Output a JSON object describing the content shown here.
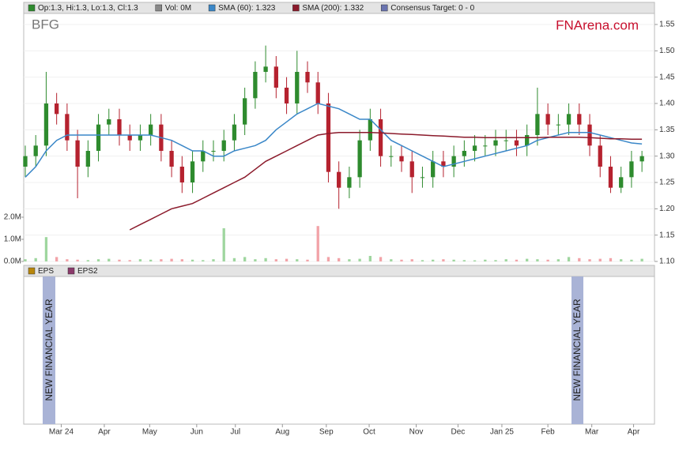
{
  "chart_data": {
    "type": "candlestick",
    "ticker": "BFG",
    "brand": "FNArena.com",
    "legend": [
      "Op:1.3, Hi:1.3, Lo:1.3, Cl:1.3",
      "Vol: 0M",
      "SMA (60): 1.323",
      "SMA (200): 1.332",
      "Consensus Target: 0 - 0"
    ],
    "legend_colors": [
      "#2e8b2e",
      "#888888",
      "#3a87c8",
      "#8b1a2b",
      "#6a74b0"
    ],
    "up_color": "#2e8b2e",
    "down_color": "#b5222f",
    "open": [
      1.28,
      1.3,
      1.32,
      1.4,
      1.38,
      1.33,
      1.28,
      1.31,
      1.36,
      1.37,
      1.34,
      1.33,
      1.34,
      1.36,
      1.31,
      1.28,
      1.25,
      1.29,
      1.31,
      1.31,
      1.33,
      1.36,
      1.41,
      1.46,
      1.47,
      1.43,
      1.4,
      1.46,
      1.44,
      1.4,
      1.27,
      1.24,
      1.26,
      1.33,
      1.37,
      1.3,
      1.3,
      1.29,
      1.26,
      1.26,
      1.29,
      1.28,
      1.3,
      1.31,
      1.32,
      1.32,
      1.33,
      1.33,
      1.32,
      1.34,
      1.38,
      1.36,
      1.36,
      1.38,
      1.36,
      1.32,
      1.28,
      1.24,
      1.26,
      1.29
    ],
    "high": [
      1.32,
      1.34,
      1.46,
      1.42,
      1.4,
      1.35,
      1.33,
      1.38,
      1.39,
      1.39,
      1.36,
      1.36,
      1.38,
      1.38,
      1.33,
      1.3,
      1.31,
      1.33,
      1.33,
      1.35,
      1.38,
      1.43,
      1.48,
      1.51,
      1.49,
      1.45,
      1.5,
      1.48,
      1.46,
      1.42,
      1.29,
      1.28,
      1.35,
      1.39,
      1.39,
      1.32,
      1.32,
      1.31,
      1.28,
      1.31,
      1.31,
      1.32,
      1.33,
      1.34,
      1.34,
      1.35,
      1.35,
      1.35,
      1.36,
      1.43,
      1.4,
      1.38,
      1.4,
      1.4,
      1.38,
      1.34,
      1.3,
      1.28,
      1.31,
      1.31
    ],
    "low": [
      1.26,
      1.28,
      1.3,
      1.36,
      1.31,
      1.22,
      1.26,
      1.29,
      1.34,
      1.32,
      1.31,
      1.31,
      1.32,
      1.29,
      1.26,
      1.23,
      1.23,
      1.27,
      1.29,
      1.29,
      1.31,
      1.34,
      1.39,
      1.44,
      1.41,
      1.38,
      1.38,
      1.42,
      1.38,
      1.25,
      1.2,
      1.22,
      1.24,
      1.31,
      1.28,
      1.28,
      1.27,
      1.23,
      1.24,
      1.24,
      1.26,
      1.26,
      1.28,
      1.29,
      1.3,
      1.3,
      1.31,
      1.3,
      1.3,
      1.32,
      1.34,
      1.34,
      1.34,
      1.34,
      1.3,
      1.26,
      1.23,
      1.23,
      1.24,
      1.27
    ],
    "close": [
      1.3,
      1.32,
      1.4,
      1.38,
      1.33,
      1.28,
      1.31,
      1.36,
      1.37,
      1.34,
      1.33,
      1.34,
      1.36,
      1.31,
      1.28,
      1.25,
      1.29,
      1.31,
      1.31,
      1.33,
      1.36,
      1.41,
      1.46,
      1.47,
      1.43,
      1.4,
      1.46,
      1.44,
      1.4,
      1.27,
      1.24,
      1.26,
      1.33,
      1.37,
      1.3,
      1.3,
      1.29,
      1.26,
      1.26,
      1.29,
      1.28,
      1.3,
      1.31,
      1.32,
      1.32,
      1.33,
      1.33,
      1.32,
      1.34,
      1.38,
      1.36,
      1.36,
      1.38,
      1.36,
      1.32,
      1.28,
      1.24,
      1.26,
      1.29,
      1.3
    ],
    "volume": [
      0.1,
      0.15,
      1.1,
      0.2,
      0.1,
      0.08,
      0.06,
      0.1,
      0.12,
      0.08,
      0.06,
      0.1,
      0.08,
      0.1,
      0.12,
      0.1,
      0.08,
      0.06,
      0.1,
      1.5,
      0.15,
      0.2,
      0.1,
      0.15,
      0.1,
      0.12,
      0.1,
      0.08,
      1.6,
      0.2,
      0.15,
      0.1,
      0.12,
      0.25,
      0.2,
      0.1,
      0.08,
      0.1,
      0.06,
      0.08,
      0.1,
      0.08,
      0.06,
      0.05,
      0.08,
      0.06,
      0.1,
      0.08,
      0.12,
      0.1,
      0.08,
      0.1,
      0.2,
      0.15,
      0.1,
      0.12,
      0.15,
      0.1,
      0.08,
      0.12
    ],
    "series": [
      {
        "name": "SMA (60)",
        "color": "#3a87c8",
        "values": [
          1.26,
          1.28,
          1.31,
          1.33,
          1.34,
          1.34,
          1.34,
          1.34,
          1.34,
          1.34,
          1.34,
          1.34,
          1.34,
          1.335,
          1.33,
          1.32,
          1.31,
          1.31,
          1.3,
          1.3,
          1.31,
          1.315,
          1.32,
          1.33,
          1.35,
          1.365,
          1.38,
          1.39,
          1.4,
          1.395,
          1.39,
          1.38,
          1.37,
          1.37,
          1.35,
          1.33,
          1.32,
          1.31,
          1.3,
          1.29,
          1.28,
          1.285,
          1.29,
          1.295,
          1.3,
          1.305,
          1.31,
          1.315,
          1.32,
          1.33,
          1.335,
          1.34,
          1.345,
          1.345,
          1.345,
          1.34,
          1.335,
          1.33,
          1.325,
          1.323
        ]
      },
      {
        "name": "SMA (200)",
        "color": "#8b1a2b",
        "values": [
          null,
          null,
          null,
          null,
          null,
          null,
          null,
          null,
          null,
          null,
          1.16,
          1.17,
          1.18,
          1.19,
          1.2,
          1.205,
          1.21,
          1.22,
          1.23,
          1.24,
          1.25,
          1.26,
          1.275,
          1.29,
          1.3,
          1.31,
          1.32,
          1.33,
          1.34,
          1.343,
          1.345,
          1.345,
          1.345,
          1.345,
          1.344,
          1.343,
          1.342,
          1.341,
          1.34,
          1.339,
          1.338,
          1.337,
          1.336,
          1.336,
          1.335,
          1.335,
          1.335,
          1.335,
          1.335,
          1.335,
          1.336,
          1.336,
          1.336,
          1.336,
          1.335,
          1.334,
          1.333,
          1.333,
          1.332,
          1.332
        ]
      }
    ],
    "xlim": [
      -0.15,
      60.2
    ],
    "xticks": [
      {
        "value": 3.44,
        "label": "Mar 24"
      },
      {
        "value": 7.56,
        "label": "Apr"
      },
      {
        "value": 11.9,
        "label": "May"
      },
      {
        "value": 16.4,
        "label": "Jun"
      },
      {
        "value": 20.1,
        "label": "Jul"
      },
      {
        "value": 24.6,
        "label": "Aug"
      },
      {
        "value": 28.8,
        "label": "Sep"
      },
      {
        "value": 32.9,
        "label": "Oct"
      },
      {
        "value": 37.4,
        "label": "Nov"
      },
      {
        "value": 41.4,
        "label": "Dec"
      },
      {
        "value": 45.6,
        "label": "Jan 25"
      },
      {
        "value": 50,
        "label": "Feb"
      },
      {
        "value": 54.2,
        "label": "Mar"
      },
      {
        "value": 58.2,
        "label": "Apr"
      }
    ],
    "ylim": [
      1.1,
      1.55
    ],
    "yticks": [
      {
        "value": 1.1,
        "label": "1.10"
      },
      1.15,
      {
        "value": 1.2,
        "label": "1.20"
      },
      1.25,
      {
        "value": 1.3,
        "label": "1.30"
      },
      1.35,
      {
        "value": 1.4,
        "label": "1.40"
      },
      1.45,
      {
        "value": 1.5,
        "label": "1.50"
      },
      1.55
    ],
    "vol_ylim": [
      0,
      10.71
    ],
    "vol_ticks": [
      {
        "value": 0,
        "label": "0.0M"
      },
      {
        "value": 1,
        "label": "1.0M"
      },
      {
        "value": 2,
        "label": "2.0M"
      }
    ],
    "eps_legend": [
      "EPS",
      "EPS2"
    ],
    "eps_legend_colors": [
      "#b8860b",
      "#8b3a6b"
    ],
    "annotations": [
      "NEW FINANCIAL YEAR",
      "NEW FINANCIAL YEAR"
    ]
  }
}
